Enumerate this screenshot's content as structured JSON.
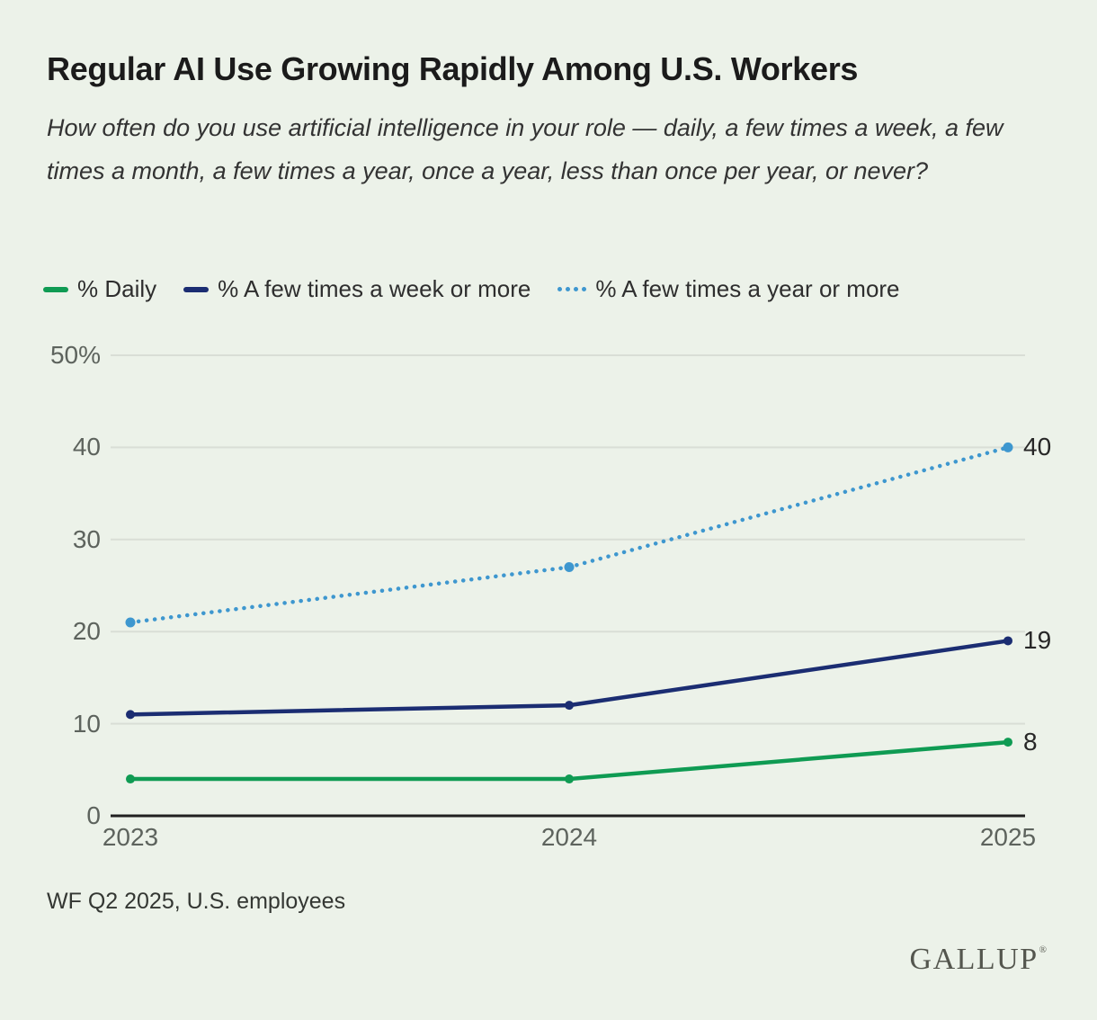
{
  "page": {
    "background": "#ecf2e9"
  },
  "header": {
    "title": "Regular AI Use Growing Rapidly Among U.S. Workers",
    "subtitle": "How often do you use artificial intelligence in your role — daily, a few times a week, a few times a month, a few times a year, once a year, less than once per year, or never?"
  },
  "legend": [
    {
      "label": "% Daily",
      "color": "#0f9b53",
      "style": "solid"
    },
    {
      "label": "% A few times a week or more",
      "color": "#1b2d72",
      "style": "solid"
    },
    {
      "label": "% A few times a year or more",
      "color": "#3e97cf",
      "style": "dotted"
    }
  ],
  "chart_data": {
    "type": "line",
    "x": [
      "2023",
      "2024",
      "2025"
    ],
    "series": [
      {
        "name": "% Daily",
        "values": [
          4,
          4,
          8
        ],
        "color": "#0f9b53",
        "style": "solid",
        "end_label": "8"
      },
      {
        "name": "% A few times a week or more",
        "values": [
          11,
          12,
          19
        ],
        "color": "#1b2d72",
        "style": "solid",
        "end_label": "19"
      },
      {
        "name": "% A few times a year or more",
        "values": [
          21,
          27,
          40
        ],
        "color": "#3e97cf",
        "style": "dotted",
        "end_label": "40"
      }
    ],
    "yticks": [
      {
        "value": 0,
        "label": "0"
      },
      {
        "value": 10,
        "label": "10"
      },
      {
        "value": 20,
        "label": "20"
      },
      {
        "value": 30,
        "label": "30"
      },
      {
        "value": 40,
        "label": "40"
      },
      {
        "value": 50,
        "label": "50%"
      }
    ],
    "xticks": [
      "2023",
      "2024",
      "2025"
    ],
    "ylim": [
      0,
      50
    ],
    "grid": true,
    "grid_color": "#d9ded6",
    "axis_color": "#202020",
    "legend_position": "top"
  },
  "footer": {
    "source": "WF Q2 2025, U.S. employees",
    "logo": "GALLUP",
    "logo_mark": "®"
  }
}
